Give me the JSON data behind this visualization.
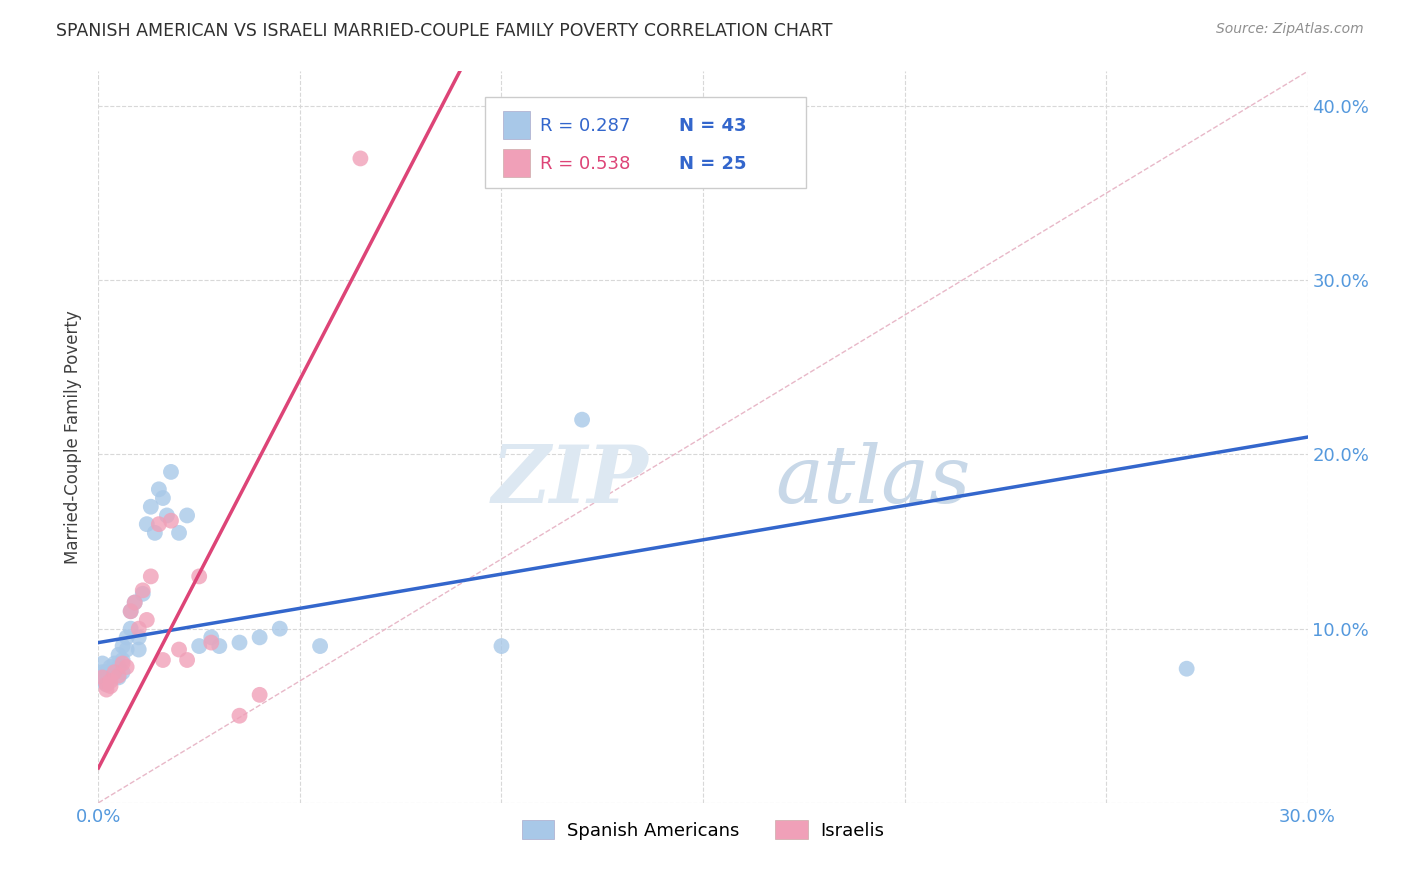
{
  "title": "SPANISH AMERICAN VS ISRAELI MARRIED-COUPLE FAMILY POVERTY CORRELATION CHART",
  "source": "Source: ZipAtlas.com",
  "ylabel": "Married-Couple Family Poverty",
  "xlim": [
    0.0,
    0.3
  ],
  "ylim": [
    0.0,
    0.42
  ],
  "blue_color": "#a8c8e8",
  "pink_color": "#f0a0b8",
  "blue_line_color": "#3366cc",
  "pink_line_color": "#dd4477",
  "diag_line_color": "#e0b0c0",
  "blue_label": "Spanish Americans",
  "pink_label": "Israelis",
  "watermark_zip": "ZIP",
  "watermark_atlas": "atlas",
  "legend_r_blue": "R = 0.287",
  "legend_n_blue": "N = 43",
  "legend_r_pink": "R = 0.538",
  "legend_n_pink": "N = 25",
  "spanish_x": [
    0.001,
    0.001,
    0.001,
    0.002,
    0.002,
    0.002,
    0.003,
    0.003,
    0.004,
    0.004,
    0.005,
    0.005,
    0.005,
    0.006,
    0.006,
    0.006,
    0.007,
    0.007,
    0.008,
    0.008,
    0.009,
    0.01,
    0.01,
    0.011,
    0.012,
    0.013,
    0.014,
    0.015,
    0.016,
    0.017,
    0.018,
    0.02,
    0.022,
    0.025,
    0.028,
    0.03,
    0.035,
    0.04,
    0.045,
    0.055,
    0.1,
    0.12,
    0.27
  ],
  "spanish_y": [
    0.08,
    0.075,
    0.07,
    0.075,
    0.072,
    0.068,
    0.078,
    0.073,
    0.08,
    0.075,
    0.085,
    0.078,
    0.072,
    0.09,
    0.082,
    0.075,
    0.095,
    0.088,
    0.11,
    0.1,
    0.115,
    0.095,
    0.088,
    0.12,
    0.16,
    0.17,
    0.155,
    0.18,
    0.175,
    0.165,
    0.19,
    0.155,
    0.165,
    0.09,
    0.095,
    0.09,
    0.092,
    0.095,
    0.1,
    0.09,
    0.09,
    0.22,
    0.077
  ],
  "israeli_x": [
    0.001,
    0.002,
    0.002,
    0.003,
    0.003,
    0.004,
    0.005,
    0.006,
    0.007,
    0.008,
    0.009,
    0.01,
    0.011,
    0.012,
    0.013,
    0.015,
    0.016,
    0.018,
    0.02,
    0.022,
    0.025,
    0.028,
    0.035,
    0.04,
    0.065
  ],
  "israeli_y": [
    0.072,
    0.068,
    0.065,
    0.07,
    0.067,
    0.075,
    0.073,
    0.08,
    0.078,
    0.11,
    0.115,
    0.1,
    0.122,
    0.105,
    0.13,
    0.16,
    0.082,
    0.162,
    0.088,
    0.082,
    0.13,
    0.092,
    0.05,
    0.062,
    0.37
  ],
  "blue_line_x0": 0.0,
  "blue_line_y0": 0.092,
  "blue_line_x1": 0.3,
  "blue_line_y1": 0.21,
  "pink_line_x0": 0.0,
  "pink_line_y0": 0.02,
  "pink_line_x1": 0.065,
  "pink_line_y1": 0.31
}
